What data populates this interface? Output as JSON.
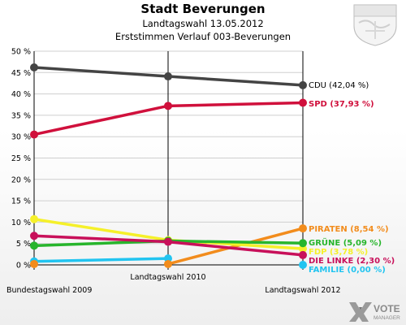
{
  "title": "Stadt Beverungen",
  "subtitle1": "Landtagswahl 13.05.2012",
  "subtitle2": "Erststimmen Verlauf 003-Beverungen",
  "watermark": {
    "brand": "VOTE",
    "sub": "MANAGER"
  },
  "chart_data": {
    "type": "line",
    "title": "Stadt Beverungen",
    "x": [
      "Bundestagswahl 2009",
      "Landtagswahl 2010",
      "Landtagswahl 2012"
    ],
    "ylim": [
      0,
      50
    ],
    "yticks": [
      "0 %",
      "5 %",
      "10 %",
      "15 %",
      "20 %",
      "25 %",
      "30 %",
      "35 %",
      "40 %",
      "45 %",
      "50 %"
    ],
    "ytick_values": [
      0,
      5,
      10,
      15,
      20,
      25,
      30,
      35,
      40,
      45,
      50
    ],
    "grid": true,
    "series": [
      {
        "name": "FAMILIE",
        "label": "FAMILIE (0,00 %)",
        "color": "#22c4f0",
        "values": [
          0.8,
          1.5,
          null
        ]
      },
      {
        "name": "PIRATEN",
        "label": "PIRATEN (8,54 %)",
        "color": "#f28c1c",
        "values": [
          null,
          0.2,
          8.54
        ]
      },
      {
        "name": "FDP",
        "label": "FDP (3,78 %)",
        "color": "#f5f02a",
        "values": [
          10.7,
          5.8,
          3.78
        ]
      },
      {
        "name": "GRÜNE",
        "label": "GRÜNE (5,09 %)",
        "color": "#27b52c",
        "values": [
          4.5,
          5.6,
          5.09
        ]
      },
      {
        "name": "DIE LINKE",
        "label": "DIE LINKE (2,30 %)",
        "color": "#c8105a",
        "values": [
          6.8,
          5.4,
          2.3
        ]
      },
      {
        "name": "SPD",
        "label": "SPD (37,93 %)",
        "color": "#d0103c",
        "values": [
          30.5,
          37.2,
          37.93
        ]
      },
      {
        "name": "CDU",
        "label": "CDU (42,04 %)",
        "color": "#444444",
        "values": [
          46.2,
          44.1,
          42.04
        ]
      }
    ],
    "extra_points": [
      {
        "series": "FAMILIE",
        "x_index": 2,
        "value": 0.0
      },
      {
        "series": "PIRATEN",
        "x_index": 0,
        "value": 0.2
      }
    ]
  }
}
